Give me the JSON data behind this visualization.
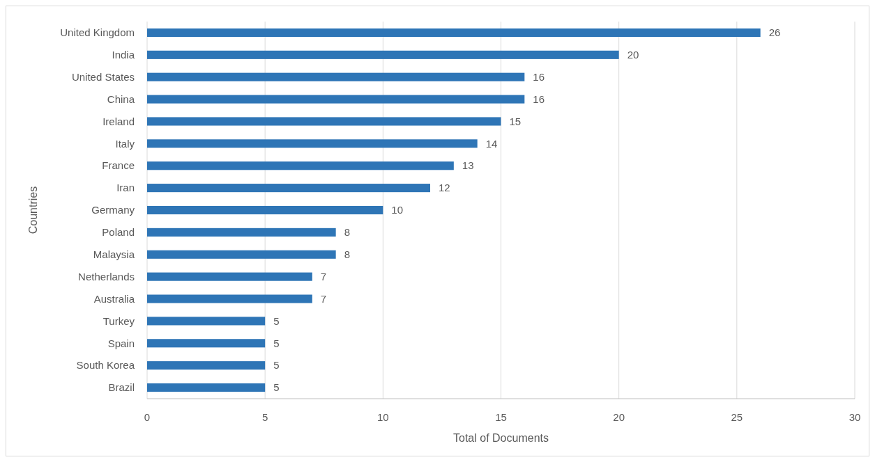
{
  "chart_data": {
    "type": "bar",
    "orientation": "horizontal",
    "xlabel": "Total of Documents",
    "ylabel": "Countries",
    "categories": [
      "United Kingdom",
      "India",
      "United States",
      "China",
      "Ireland",
      "Italy",
      "France",
      "Iran",
      "Germany",
      "Poland",
      "Malaysia",
      "Netherlands",
      "Australia",
      "Turkey",
      "Spain",
      "South Korea",
      "Brazil"
    ],
    "values": [
      26,
      20,
      16,
      16,
      15,
      14,
      13,
      12,
      10,
      8,
      8,
      7,
      7,
      5,
      5,
      5,
      5
    ],
    "color": "#2e75b6",
    "xlim": [
      0,
      30
    ],
    "xticks": [
      0,
      5,
      10,
      15,
      20,
      25,
      30
    ],
    "grid": "x",
    "data_labels": true
  }
}
